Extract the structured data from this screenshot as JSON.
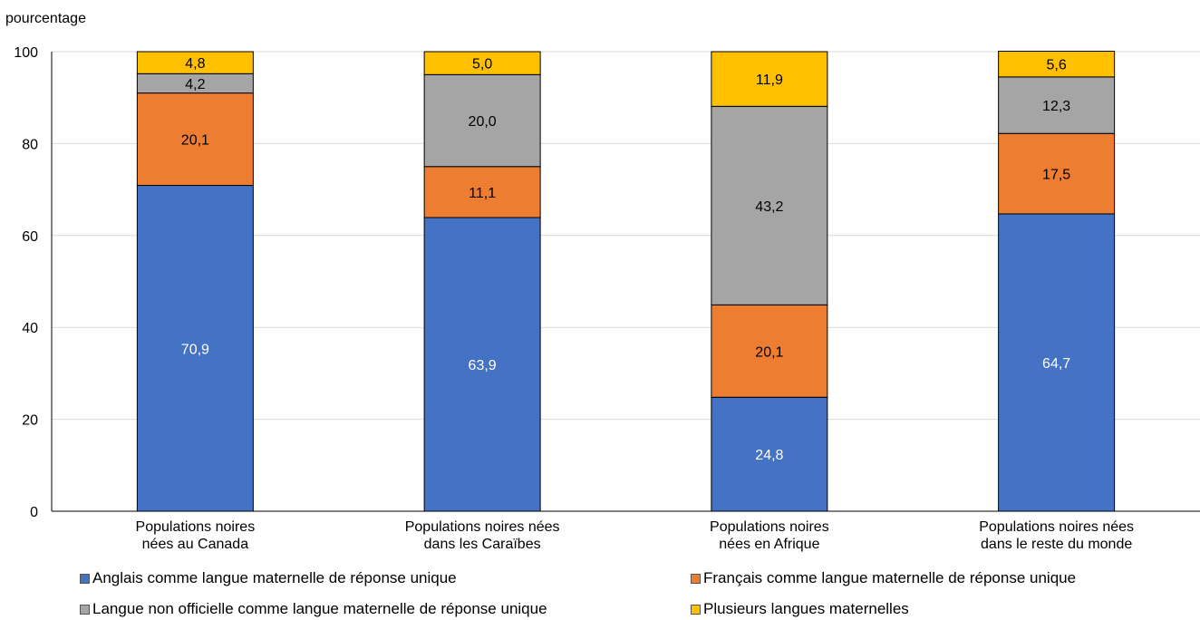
{
  "chart_data": {
    "type": "bar",
    "stacked": true,
    "ylabel": "pourcentage",
    "ylim": [
      0,
      100
    ],
    "yticks": [
      0,
      20,
      40,
      60,
      80,
      100
    ],
    "grid": true,
    "legend_position": "bottom",
    "categories": [
      [
        "Populations noires",
        "nées au Canada"
      ],
      [
        "Populations noires nées",
        "dans les Caraïbes"
      ],
      [
        "Populations noires",
        "nées en Afrique"
      ],
      [
        "Populations noires nées",
        "dans le reste du monde"
      ]
    ],
    "series": [
      {
        "name": "Anglais comme langue maternelle de réponse unique",
        "color": "#4472c4",
        "label_color": "#ffffff",
        "values": [
          70.9,
          63.9,
          24.8,
          64.7
        ],
        "labels": [
          "70,9",
          "63,9",
          "24,8",
          "64,7"
        ]
      },
      {
        "name": "Français comme langue maternelle de réponse unique",
        "color": "#ed7d31",
        "label_color": "#000000",
        "values": [
          20.1,
          11.1,
          20.1,
          17.5
        ],
        "labels": [
          "20,1",
          "11,1",
          "20,1",
          "17,5"
        ]
      },
      {
        "name": "Langue non officielle comme langue maternelle de réponse unique",
        "color": "#a5a5a5",
        "label_color": "#000000",
        "values": [
          4.2,
          20.0,
          43.2,
          12.3
        ],
        "labels": [
          "4,2",
          "20,0",
          "43,2",
          "12,3"
        ]
      },
      {
        "name": "Plusieurs langues maternelles",
        "color": "#ffc000",
        "label_color": "#000000",
        "values": [
          4.8,
          5.0,
          11.9,
          5.6
        ],
        "labels": [
          "4,8",
          "5,0",
          "11,9",
          "5,6"
        ]
      }
    ]
  }
}
